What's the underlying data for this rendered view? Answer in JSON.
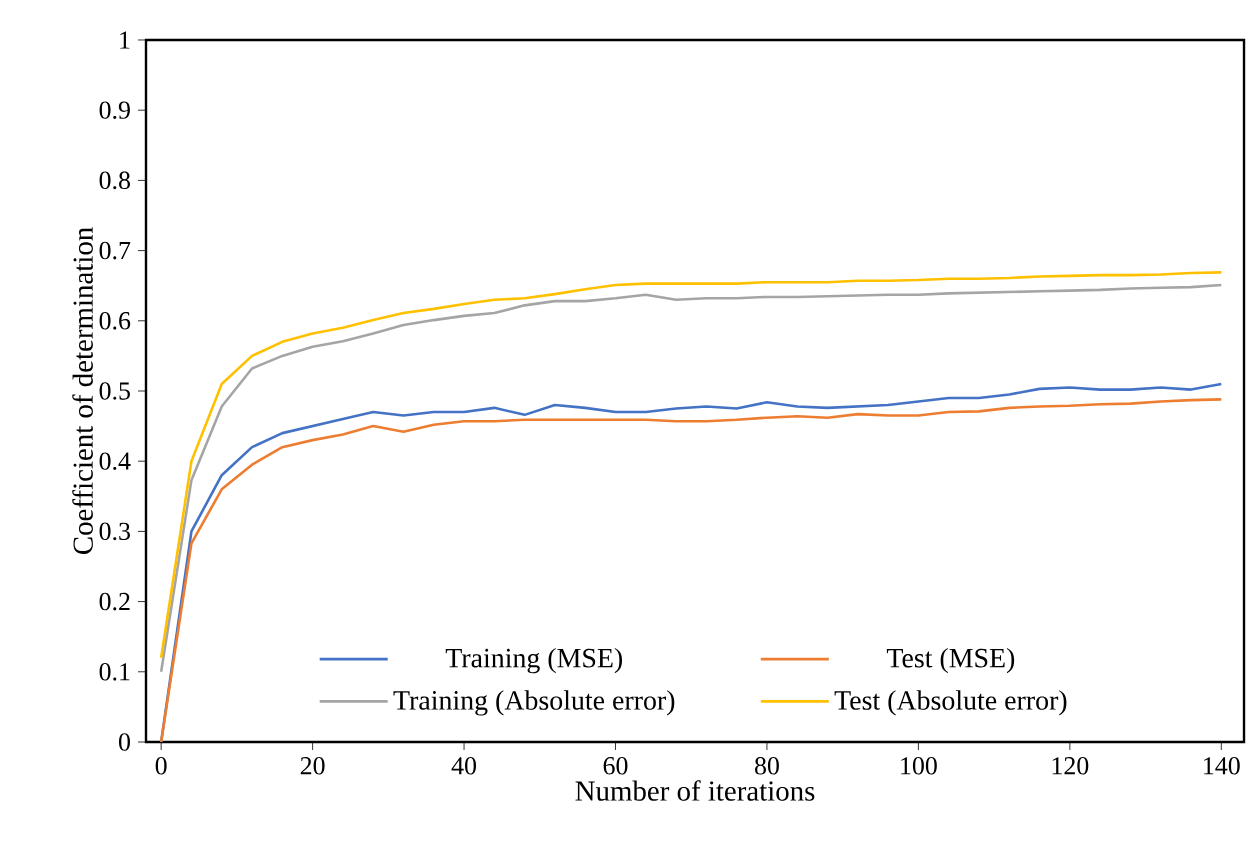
{
  "chart_data": {
    "type": "line",
    "xlabel": "Number of iterations",
    "ylabel": "Coefficient of determination",
    "x": [
      0,
      4,
      8,
      12,
      16,
      20,
      24,
      28,
      32,
      36,
      40,
      44,
      48,
      52,
      56,
      60,
      64,
      68,
      72,
      76,
      80,
      84,
      88,
      92,
      96,
      100,
      104,
      108,
      112,
      116,
      120,
      124,
      128,
      132,
      136,
      140
    ],
    "series": [
      {
        "name": "Training (MSE)",
        "color": "#4472c4",
        "values": [
          0,
          0.3,
          0.38,
          0.42,
          0.44,
          0.45,
          0.46,
          0.47,
          0.465,
          0.47,
          0.47,
          0.476,
          0.466,
          0.48,
          0.476,
          0.47,
          0.47,
          0.475,
          0.478,
          0.475,
          0.484,
          0.478,
          0.476,
          0.478,
          0.48,
          0.485,
          0.49,
          0.49,
          0.495,
          0.503,
          0.505,
          0.502,
          0.502,
          0.505,
          0.502,
          0.51
        ]
      },
      {
        "name": "Test (MSE)",
        "color": "#ed7d31",
        "values": [
          0,
          0.283,
          0.36,
          0.395,
          0.42,
          0.43,
          0.438,
          0.45,
          0.442,
          0.452,
          0.457,
          0.457,
          0.459,
          0.459,
          0.459,
          0.459,
          0.459,
          0.457,
          0.457,
          0.459,
          0.462,
          0.464,
          0.462,
          0.467,
          0.465,
          0.465,
          0.47,
          0.471,
          0.476,
          0.478,
          0.479,
          0.481,
          0.482,
          0.485,
          0.487,
          0.488
        ]
      },
      {
        "name": "Training (Absolute error)",
        "color": "#a5a5a5",
        "values": [
          0.1,
          0.373,
          0.478,
          0.532,
          0.55,
          0.563,
          0.571,
          0.582,
          0.594,
          0.601,
          0.607,
          0.611,
          0.622,
          0.628,
          0.628,
          0.632,
          0.637,
          0.63,
          0.632,
          0.632,
          0.634,
          0.634,
          0.635,
          0.636,
          0.637,
          0.637,
          0.639,
          0.64,
          0.641,
          0.642,
          0.643,
          0.644,
          0.646,
          0.647,
          0.648,
          0.651
        ]
      },
      {
        "name": "Test (Absolute error)",
        "color": "#ffc000",
        "values": [
          0.12,
          0.4,
          0.51,
          0.55,
          0.57,
          0.582,
          0.59,
          0.601,
          0.611,
          0.617,
          0.624,
          0.63,
          0.632,
          0.638,
          0.645,
          0.651,
          0.653,
          0.653,
          0.653,
          0.653,
          0.655,
          0.655,
          0.655,
          0.657,
          0.657,
          0.658,
          0.66,
          0.66,
          0.661,
          0.663,
          0.664,
          0.665,
          0.665,
          0.666,
          0.668,
          0.669
        ]
      }
    ],
    "xlim": [
      -2,
      143
    ],
    "ylim": [
      0,
      1
    ],
    "xticks": [
      0,
      20,
      40,
      60,
      80,
      100,
      120,
      140
    ],
    "yticks": [
      0,
      0.1,
      0.2,
      0.3,
      0.4,
      0.5,
      0.6,
      0.7,
      0.8,
      0.9,
      1
    ],
    "grid": false,
    "legend": "bottom",
    "marker": "none",
    "line_style": "solid"
  }
}
